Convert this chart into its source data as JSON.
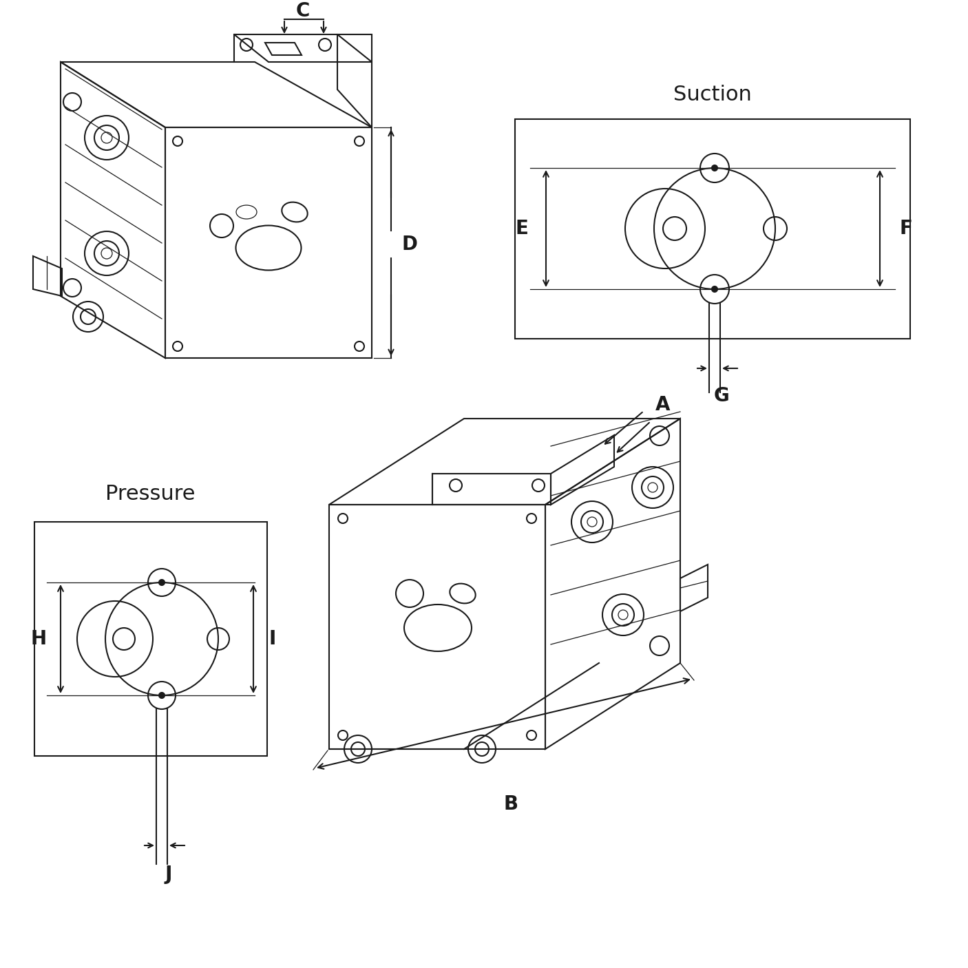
{
  "bg": "#ffffff",
  "lc": "#1a1a1a",
  "lw": 1.5,
  "lwt": 0.9,
  "fs_label": 20,
  "suction_text": "Suction",
  "pressure_text": "Pressure",
  "dims": [
    "A",
    "B",
    "C",
    "D",
    "E",
    "F",
    "G",
    "H",
    "I",
    "J"
  ],
  "fig_w": 14.06,
  "fig_h": 14.06,
  "dpi": 100
}
